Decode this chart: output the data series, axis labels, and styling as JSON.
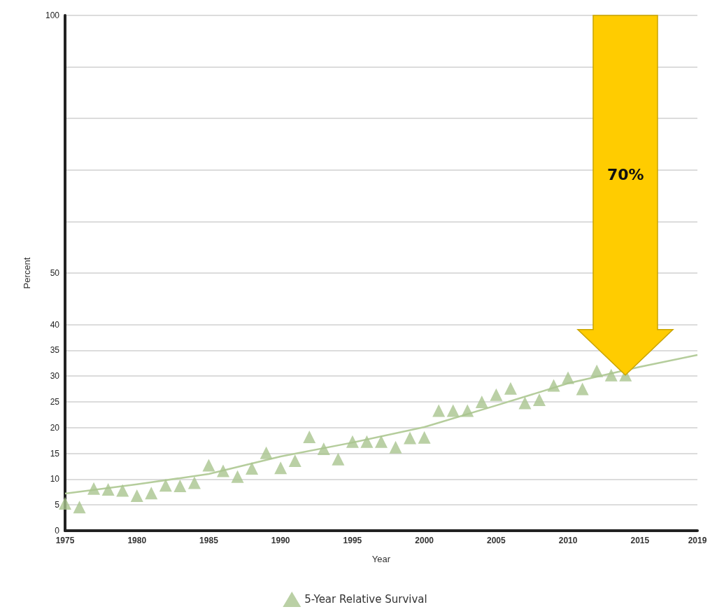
{
  "chart_data": {
    "type": "scatter",
    "xlabel": "Year",
    "ylabel": "Percent",
    "xlim": [
      1975,
      2019
    ],
    "xticks": [
      1975,
      1980,
      1985,
      1990,
      1995,
      2000,
      2005,
      2010,
      2015,
      2019
    ],
    "ylim": [
      0,
      100
    ],
    "yticks": [
      0,
      5,
      10,
      15,
      20,
      25,
      30,
      35,
      40,
      50,
      {
        "value": 60,
        "label": null
      },
      {
        "value": 70,
        "label": null
      },
      {
        "value": 80,
        "label": null
      },
      {
        "value": 90,
        "label": null
      },
      100
    ],
    "grid": "y",
    "legend": "bottom",
    "marker": "triangle",
    "annotations": [
      "70%"
    ],
    "series": [
      {
        "name": "5-Year Relative Survival",
        "color": "#a9c48f",
        "x": [
          1975,
          1976,
          1977,
          1978,
          1979,
          1980,
          1981,
          1982,
          1983,
          1984,
          1985,
          1986,
          1987,
          1988,
          1989,
          1990,
          1991,
          1992,
          1993,
          1994,
          1995,
          1996,
          1997,
          1998,
          1999,
          2000,
          2001,
          2002,
          2003,
          2004,
          2005,
          2006,
          2007,
          2008,
          2009,
          2010,
          2011,
          2012,
          2013,
          2014
        ],
        "values": [
          5.3,
          4.6,
          8.2,
          8.0,
          7.8,
          6.8,
          7.3,
          8.8,
          8.7,
          9.3,
          12.7,
          11.6,
          10.5,
          12.1,
          15.1,
          12.2,
          13.6,
          18.2,
          15.9,
          13.9,
          17.3,
          17.3,
          17.3,
          16.2,
          18.0,
          18.1,
          23.3,
          23.3,
          23.3,
          25.0,
          26.4,
          27.6,
          24.8,
          25.4,
          28.2,
          29.7,
          27.5,
          31.0,
          30.2,
          30.2
        ]
      },
      {
        "type": "line",
        "color": "#b5cd9c",
        "marker": "none",
        "x": [
          1975,
          1980,
          1985,
          1990,
          1995,
          2000,
          2005,
          2010,
          2015,
          2019
        ],
        "values": [
          7.2,
          9.0,
          11.0,
          14.4,
          17.1,
          20.1,
          24.3,
          28.6,
          31.8,
          34.1
        ]
      }
    ]
  }
}
